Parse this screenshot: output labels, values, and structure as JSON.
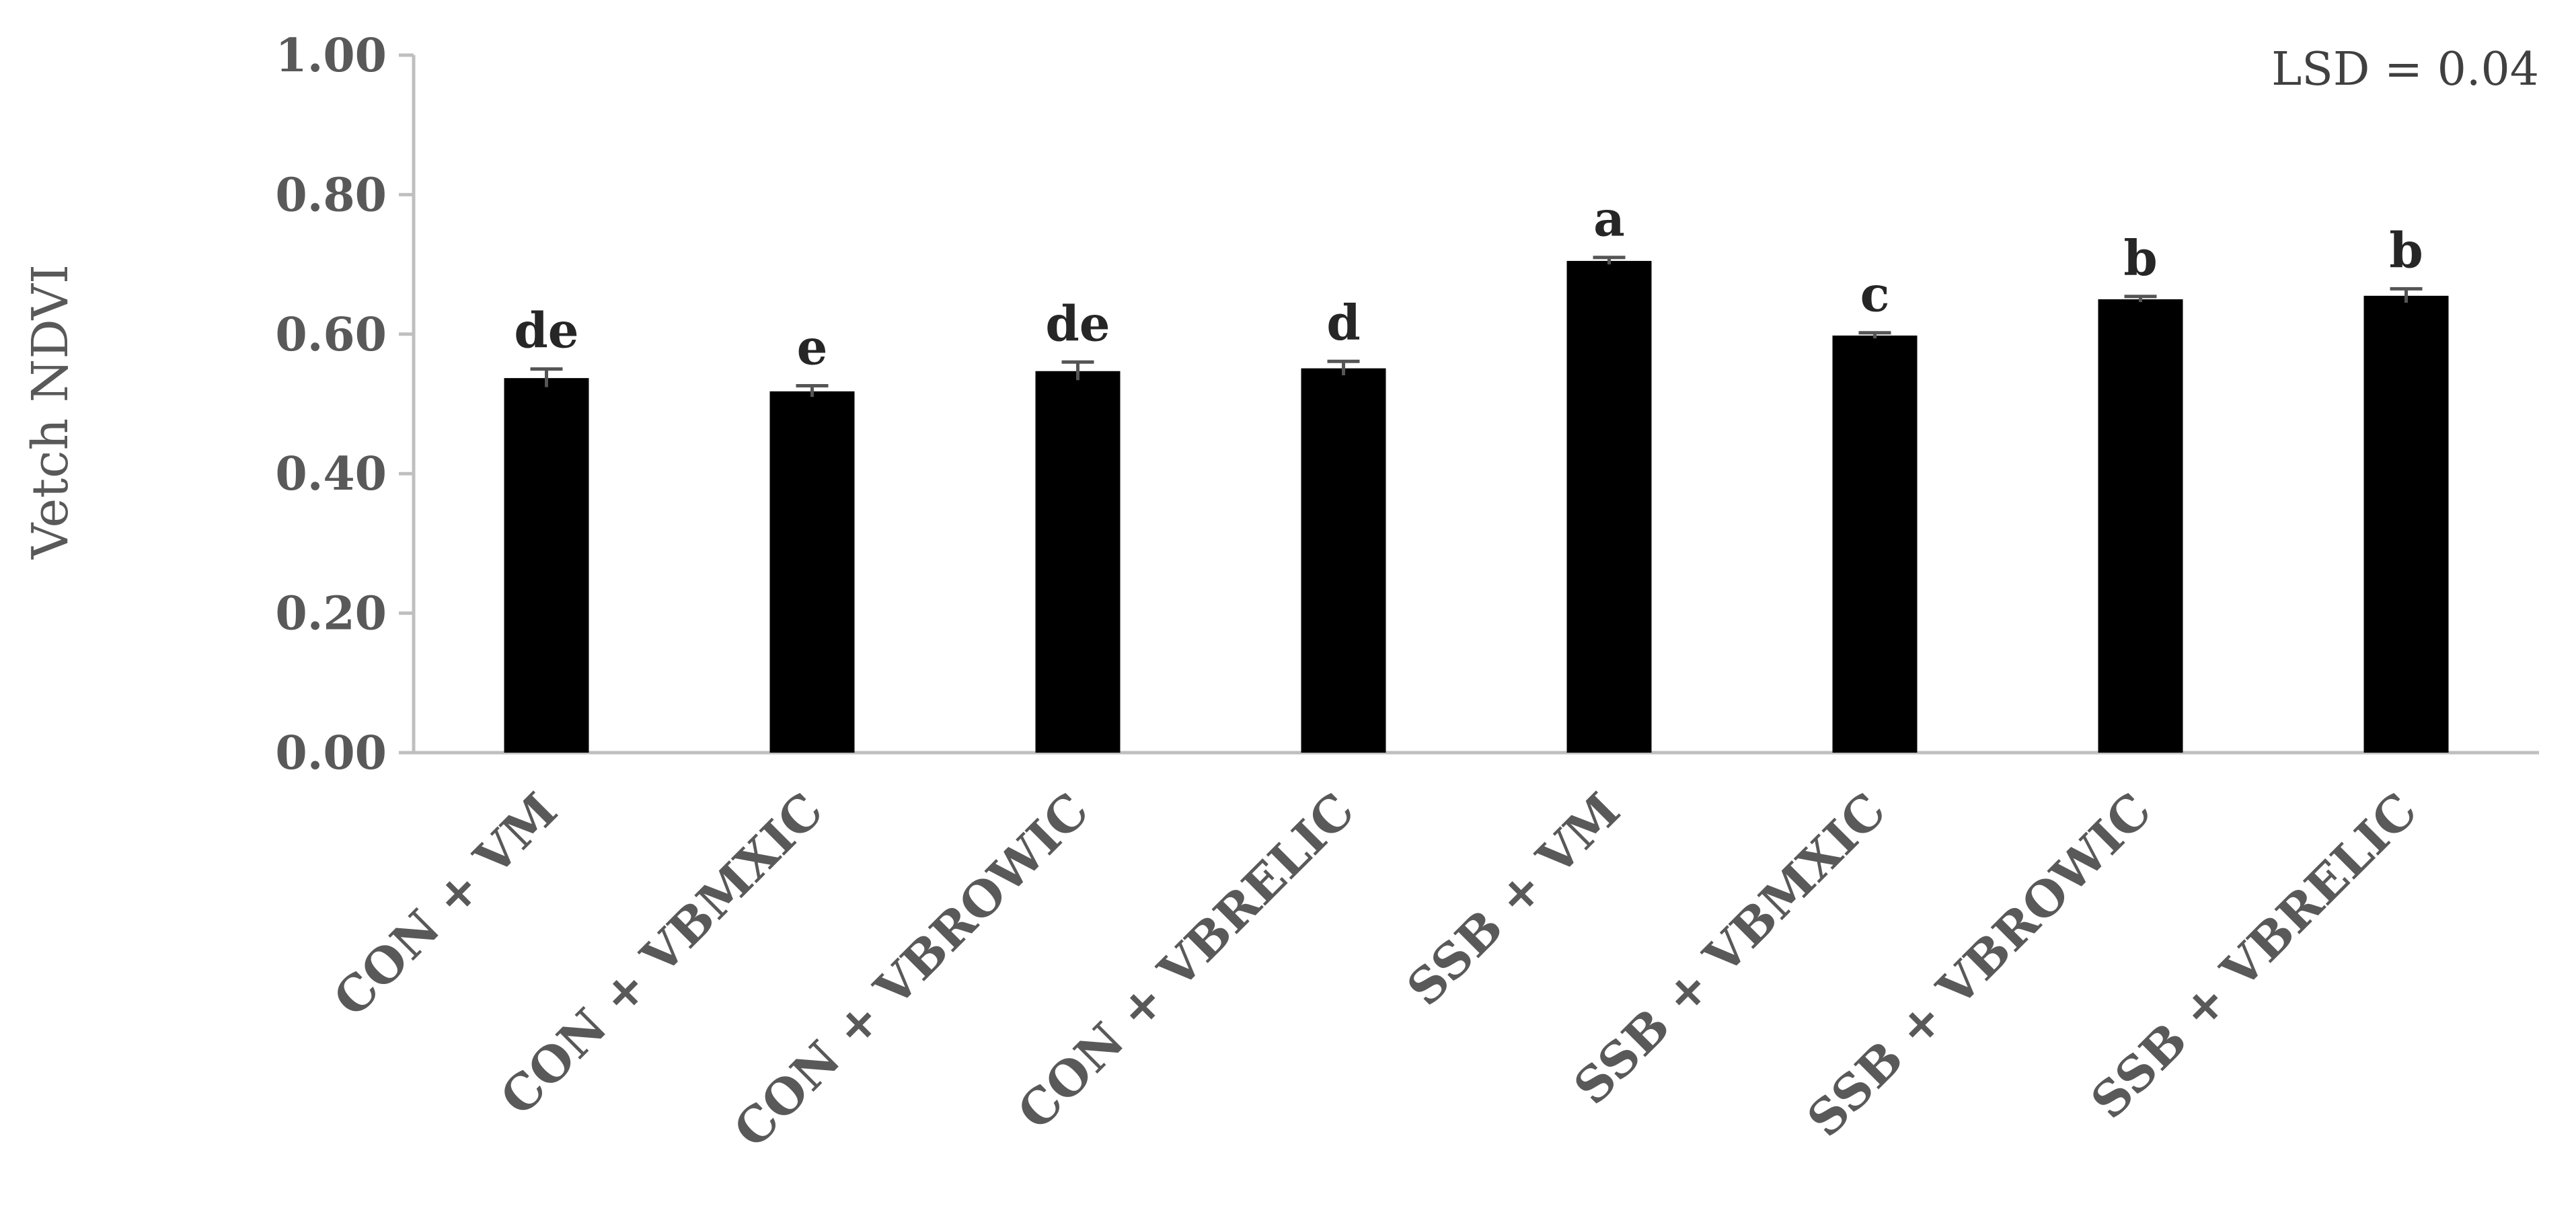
{
  "chart_data": {
    "type": "bar",
    "title": "",
    "xlabel": "",
    "ylabel": "Vetch NDVI",
    "ylim": [
      0,
      1
    ],
    "yticks": [
      "0.00",
      "0.20",
      "0.40",
      "0.60",
      "0.80",
      "1.00"
    ],
    "grid": false,
    "categories": [
      "CON + VM",
      "CON + VBMXIC",
      "CON + VBROWIC",
      "CON + VBRELIC",
      "SSB + VM",
      "SSB + VBMXIC",
      "SSB + VBROWIC",
      "SSB + VBRELIC"
    ],
    "values": [
      0.537,
      0.518,
      0.547,
      0.551,
      0.705,
      0.598,
      0.65,
      0.655
    ],
    "error": [
      0.013,
      0.008,
      0.013,
      0.01,
      0.005,
      0.004,
      0.004,
      0.01
    ],
    "significance_letters": [
      "de",
      "e",
      "de",
      "d",
      "a",
      "c",
      "b",
      "b"
    ],
    "annotation": "LSD = 0.04",
    "bar_color": "#000000",
    "axis_color": "#bfbfbf",
    "text_color": "#595959"
  }
}
